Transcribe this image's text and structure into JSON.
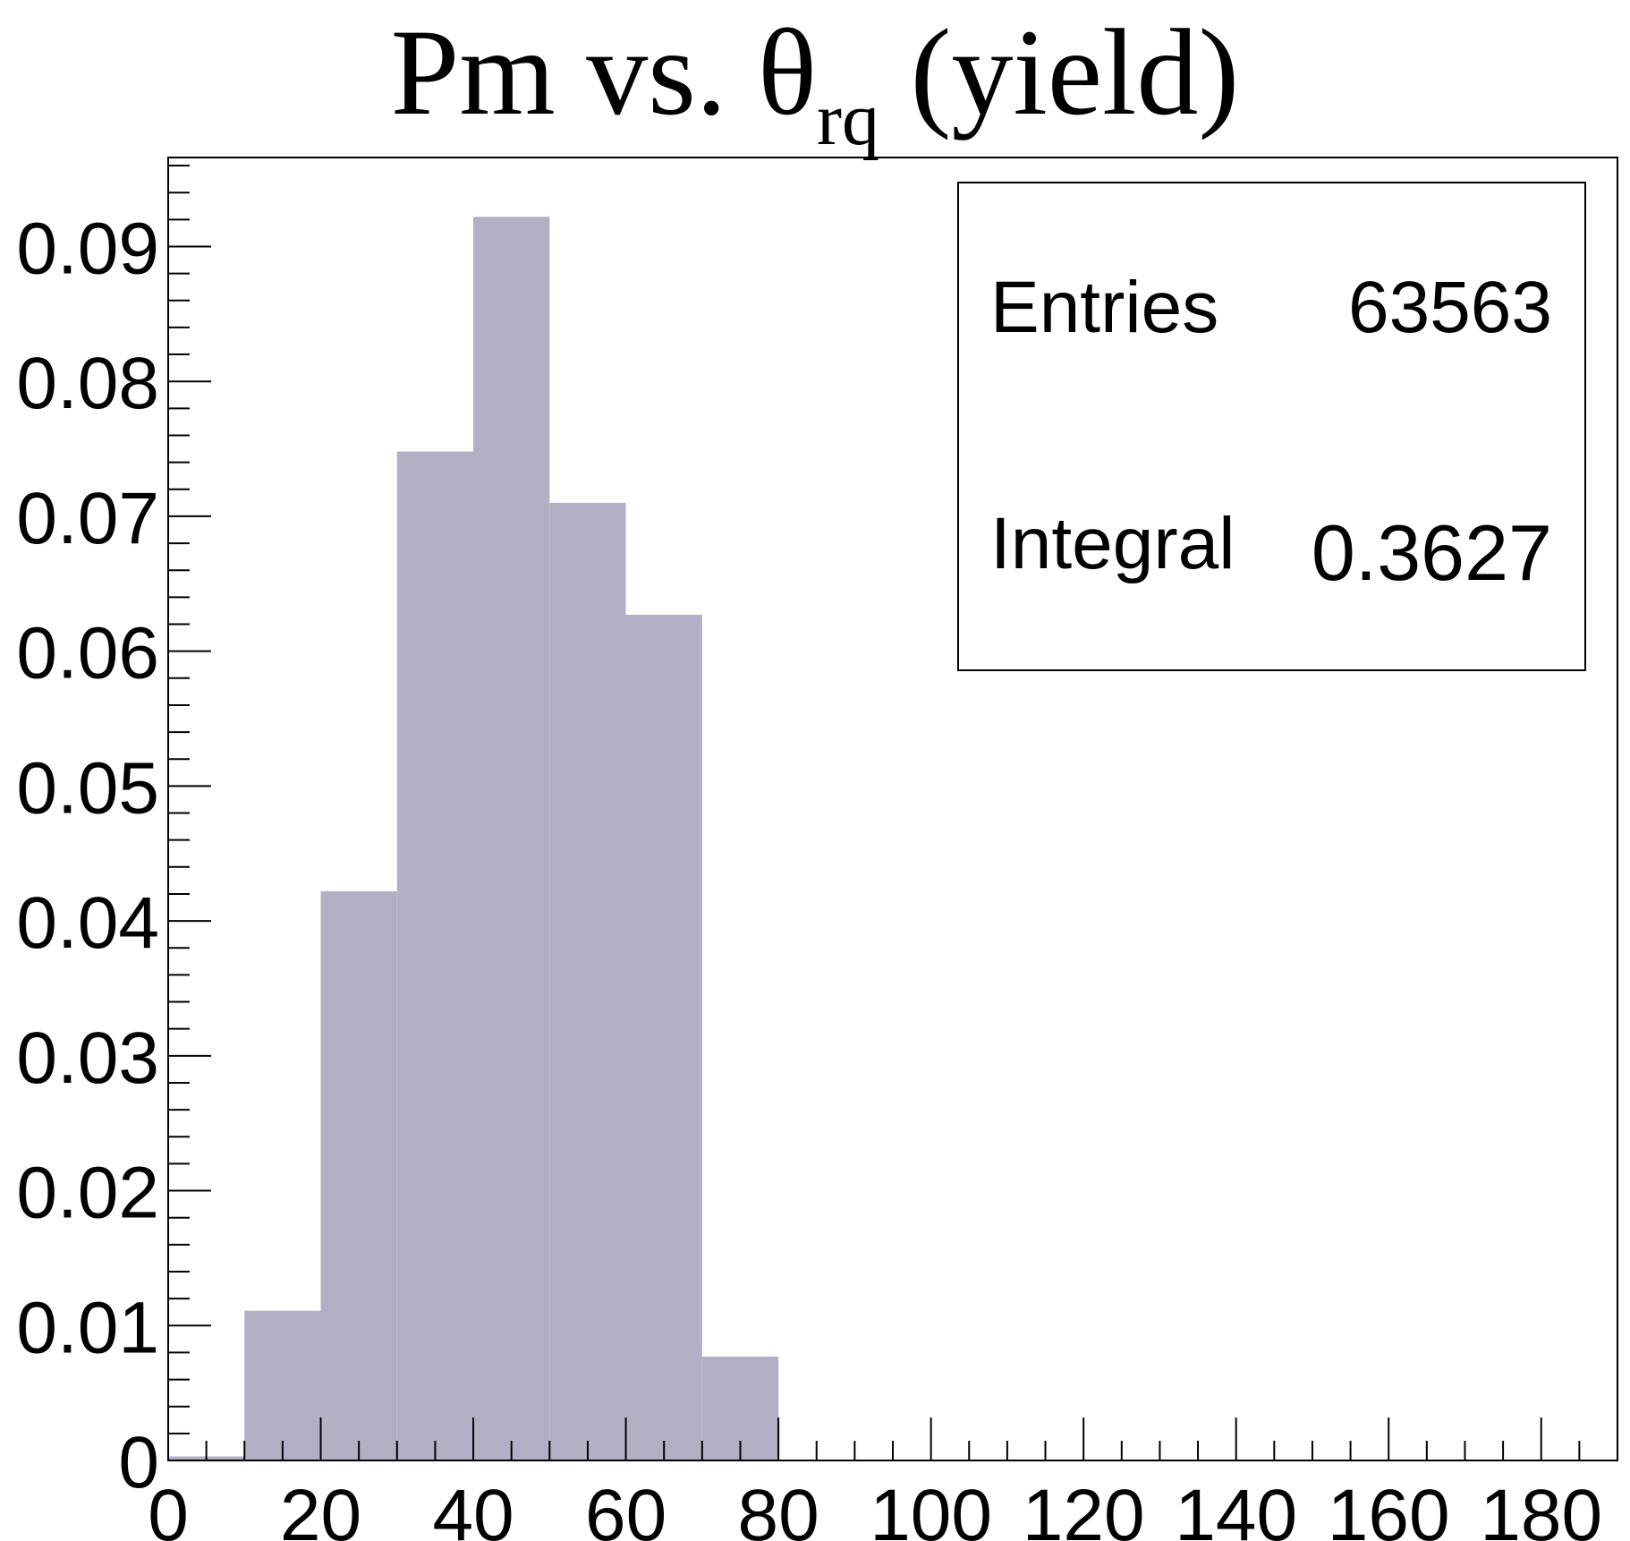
{
  "chart_data": {
    "type": "bar",
    "title_main": "Pm vs. θ",
    "title_sub": "rq",
    "title_tail": " (yield)",
    "xlabel": "",
    "ylabel": "",
    "xlim": [
      0,
      190
    ],
    "ylim": [
      0,
      0.0966
    ],
    "bin_edges": [
      0,
      10,
      20,
      30,
      40,
      50,
      60,
      70,
      80,
      90,
      100,
      110,
      120,
      130,
      140,
      150,
      160,
      170,
      180,
      190
    ],
    "values": [
      0.0003,
      0.0111,
      0.0422,
      0.0748,
      0.0922,
      0.071,
      0.0627,
      0.0077,
      0,
      0,
      0,
      0,
      0,
      0,
      0,
      0,
      0,
      0,
      0
    ],
    "bar_color": "#b1b0c5",
    "x_ticks": [
      "0",
      "20",
      "40",
      "60",
      "80",
      "100",
      "120",
      "140",
      "160",
      "180"
    ],
    "x_tick_values": [
      0,
      20,
      40,
      60,
      80,
      100,
      120,
      140,
      160,
      180
    ],
    "y_ticks": [
      "0",
      "0.01",
      "0.02",
      "0.03",
      "0.04",
      "0.05",
      "0.06",
      "0.07",
      "0.08",
      "0.09"
    ],
    "y_tick_values": [
      0,
      0.01,
      0.02,
      0.03,
      0.04,
      0.05,
      0.06,
      0.07,
      0.08,
      0.09
    ],
    "grid": false,
    "legend_position": "top-right",
    "stats": {
      "entries_label": "Entries",
      "entries_value": "63563",
      "integral_label": "Integral",
      "integral_value": "0.3627"
    }
  }
}
